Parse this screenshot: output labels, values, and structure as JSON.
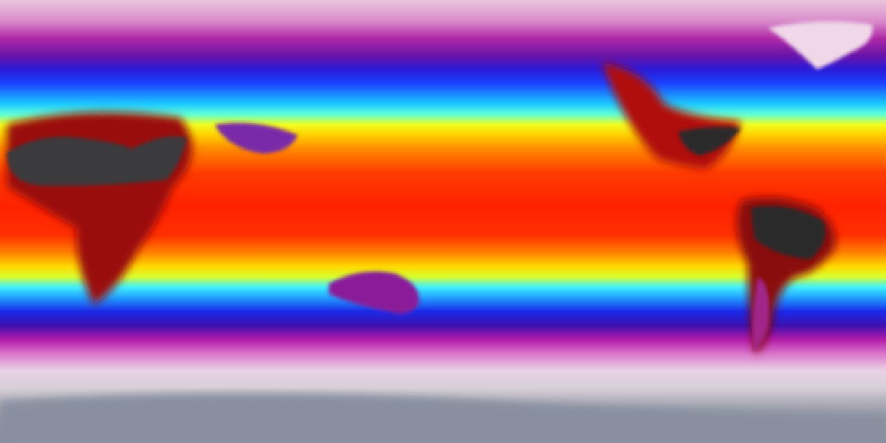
{
  "map": {
    "projection": "equirectangular",
    "colormap": [
      "#8890a0",
      "#e8d0e4",
      "#b02aa6",
      "#1a2ae8",
      "#1cc8ff",
      "#f0ff20",
      "#ff8a00",
      "#ff2200",
      "#3a3a3a"
    ]
  }
}
